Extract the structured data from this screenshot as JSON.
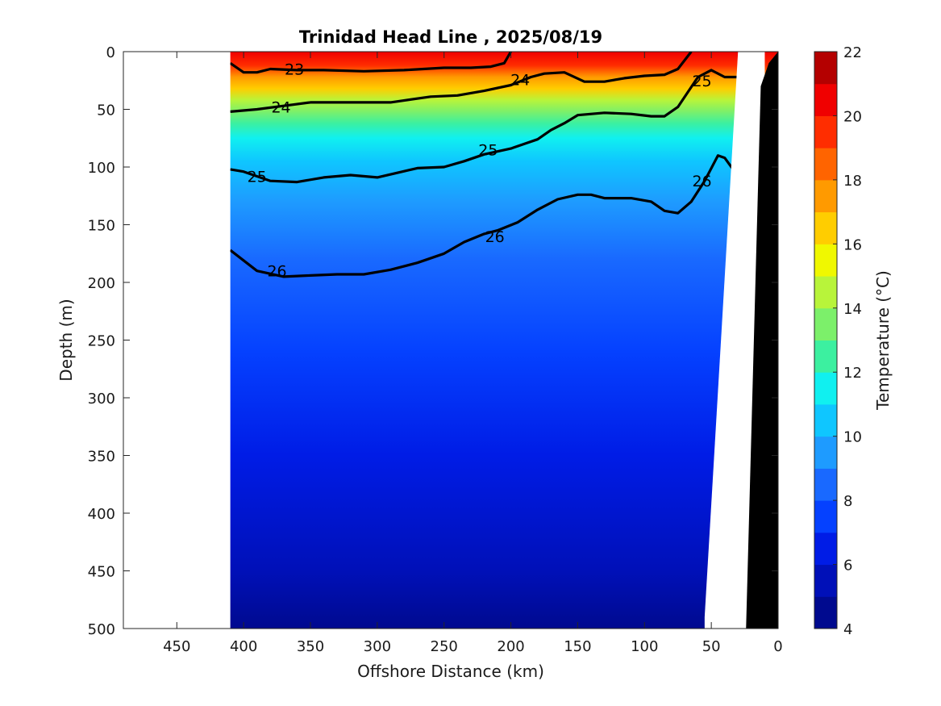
{
  "chart_data": {
    "type": "contour",
    "title": "Trinidad Head Line , 2025/08/19",
    "xlabel": "Offshore Distance (km)",
    "ylabel": "Depth (m)",
    "xlim": [
      490,
      0
    ],
    "ylim": [
      0,
      500
    ],
    "xticks": [
      450,
      400,
      350,
      300,
      250,
      200,
      150,
      100,
      50,
      0
    ],
    "yticks": [
      0,
      50,
      100,
      150,
      200,
      250,
      300,
      350,
      400,
      450,
      500
    ],
    "colorbar": {
      "label": "Temperature (°C)",
      "range": [
        4,
        22
      ],
      "ticks": [
        4,
        6,
        8,
        10,
        12,
        14,
        16,
        18,
        20,
        22
      ],
      "levels": [
        {
          "low": 4,
          "high": 5,
          "color": "#000a8f"
        },
        {
          "low": 5,
          "high": 6,
          "color": "#0010b8"
        },
        {
          "low": 6,
          "high": 7,
          "color": "#001ce6"
        },
        {
          "low": 7,
          "high": 8,
          "color": "#0541ff"
        },
        {
          "low": 8,
          "high": 9,
          "color": "#1969ff"
        },
        {
          "low": 9,
          "high": 10,
          "color": "#1e9bff"
        },
        {
          "low": 10,
          "high": 11,
          "color": "#0fc6ff"
        },
        {
          "low": 11,
          "high": 12,
          "color": "#10f0f0"
        },
        {
          "low": 12,
          "high": 13,
          "color": "#3cf0a0"
        },
        {
          "low": 13,
          "high": 14,
          "color": "#7cf06a"
        },
        {
          "low": 14,
          "high": 15,
          "color": "#b8f43a"
        },
        {
          "low": 15,
          "high": 16,
          "color": "#f0f800"
        },
        {
          "low": 16,
          "high": 17,
          "color": "#ffcd00"
        },
        {
          "low": 17,
          "high": 18,
          "color": "#ff9a00"
        },
        {
          "low": 18,
          "high": 19,
          "color": "#ff6400"
        },
        {
          "low": 19,
          "high": 20,
          "color": "#ff2d00"
        },
        {
          "low": 20,
          "high": 21,
          "color": "#f00000"
        },
        {
          "low": 21,
          "high": 22,
          "color": "#b40000"
        }
      ]
    },
    "data_extent_km": [
      0,
      410
    ],
    "temperature_profile": [
      {
        "depth": 0,
        "temp": 20.5
      },
      {
        "depth": 12,
        "temp": 19.0
      },
      {
        "depth": 22,
        "temp": 17.5
      },
      {
        "depth": 32,
        "temp": 16.0
      },
      {
        "depth": 42,
        "temp": 14.5
      },
      {
        "depth": 52,
        "temp": 13.0
      },
      {
        "depth": 62,
        "temp": 12.0
      },
      {
        "depth": 75,
        "temp": 11.0
      },
      {
        "depth": 95,
        "temp": 10.0
      },
      {
        "depth": 130,
        "temp": 9.0
      },
      {
        "depth": 180,
        "temp": 8.0
      },
      {
        "depth": 260,
        "temp": 7.0
      },
      {
        "depth": 350,
        "temp": 6.0
      },
      {
        "depth": 450,
        "temp": 5.0
      },
      {
        "depth": 500,
        "temp": 4.6
      }
    ],
    "density_contours": [
      {
        "label": "23",
        "points": [
          [
            410,
            10
          ],
          [
            400,
            18
          ],
          [
            390,
            18
          ],
          [
            380,
            15
          ],
          [
            360,
            16
          ],
          [
            340,
            16
          ],
          [
            310,
            17
          ],
          [
            280,
            16
          ],
          [
            250,
            14
          ],
          [
            230,
            14
          ],
          [
            215,
            13
          ],
          [
            205,
            10
          ],
          [
            200,
            0
          ]
        ]
      },
      {
        "label": "24",
        "points": [
          [
            410,
            52
          ],
          [
            390,
            50
          ],
          [
            370,
            47
          ],
          [
            350,
            44
          ],
          [
            320,
            44
          ],
          [
            290,
            44
          ],
          [
            260,
            39
          ],
          [
            240,
            38
          ],
          [
            220,
            34
          ],
          [
            200,
            29
          ],
          [
            185,
            22
          ],
          [
            175,
            19
          ],
          [
            160,
            18
          ],
          [
            145,
            26
          ],
          [
            130,
            26
          ],
          [
            115,
            23
          ],
          [
            100,
            21
          ],
          [
            85,
            20
          ],
          [
            75,
            15
          ],
          [
            65,
            0
          ]
        ]
      },
      {
        "label": "25",
        "points": [
          [
            410,
            102
          ],
          [
            400,
            104
          ],
          [
            380,
            112
          ],
          [
            360,
            113
          ],
          [
            340,
            109
          ],
          [
            320,
            107
          ],
          [
            300,
            109
          ],
          [
            285,
            105
          ],
          [
            270,
            101
          ],
          [
            250,
            100
          ],
          [
            235,
            95
          ],
          [
            220,
            89
          ],
          [
            200,
            84
          ],
          [
            190,
            80
          ],
          [
            180,
            76
          ],
          [
            170,
            68
          ],
          [
            160,
            62
          ],
          [
            150,
            55
          ],
          [
            130,
            53
          ],
          [
            110,
            54
          ],
          [
            95,
            56
          ],
          [
            85,
            56
          ],
          [
            75,
            48
          ],
          [
            60,
            22
          ],
          [
            50,
            16
          ],
          [
            40,
            22
          ],
          [
            30,
            22
          ],
          [
            20,
            19
          ]
        ]
      },
      {
        "label": "26",
        "points": [
          [
            410,
            172
          ],
          [
            390,
            190
          ],
          [
            370,
            195
          ],
          [
            350,
            194
          ],
          [
            330,
            193
          ],
          [
            310,
            193
          ],
          [
            290,
            189
          ],
          [
            270,
            183
          ],
          [
            250,
            175
          ],
          [
            235,
            165
          ],
          [
            220,
            158
          ],
          [
            210,
            155
          ],
          [
            195,
            148
          ],
          [
            180,
            137
          ],
          [
            165,
            128
          ],
          [
            150,
            124
          ],
          [
            140,
            124
          ],
          [
            130,
            127
          ],
          [
            110,
            127
          ],
          [
            95,
            130
          ],
          [
            85,
            138
          ],
          [
            75,
            140
          ],
          [
            65,
            130
          ],
          [
            55,
            112
          ],
          [
            45,
            90
          ],
          [
            40,
            92
          ],
          [
            30,
            108
          ],
          [
            20,
            110
          ]
        ]
      }
    ],
    "contour_labels": [
      {
        "text": "23",
        "x": 362,
        "y": 15
      },
      {
        "text": "24",
        "x": 372,
        "y": 48
      },
      {
        "text": "24",
        "x": 193,
        "y": 24
      },
      {
        "text": "25",
        "x": 57,
        "y": 25
      },
      {
        "text": "25",
        "x": 390,
        "y": 108
      },
      {
        "text": "25",
        "x": 217,
        "y": 85
      },
      {
        "text": "26",
        "x": 375,
        "y": 190
      },
      {
        "text": "26",
        "x": 212,
        "y": 160
      },
      {
        "text": "26",
        "x": 57,
        "y": 112
      }
    ]
  }
}
